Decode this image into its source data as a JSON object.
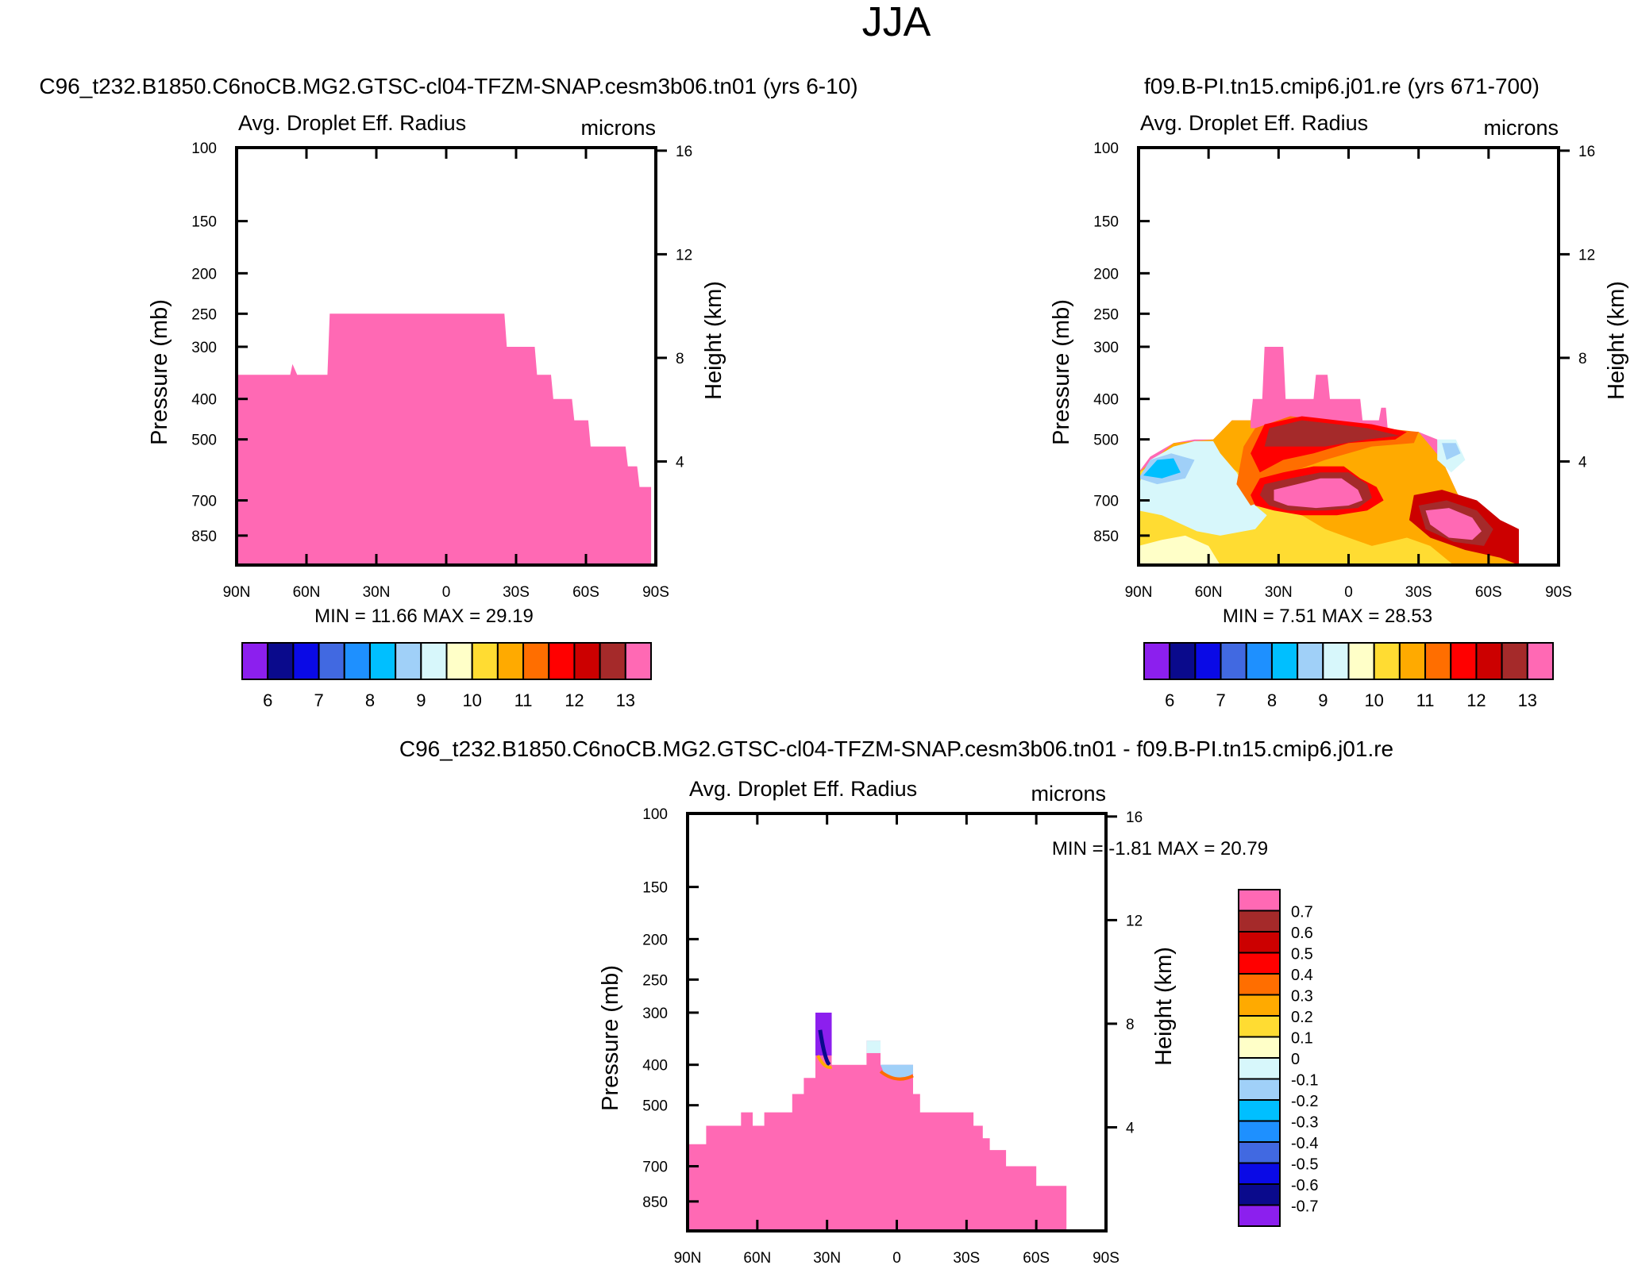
{
  "figure": {
    "title": "JJA"
  },
  "chart_data": [
    {
      "type": "heatmap",
      "title": "C96_t232.B1850.C6noCB.MG2.GTSC-cl04-TFZM-SNAP.cesm3b06.tn01 (yrs 6-10)",
      "variable": "Avg. Droplet Eff. Radius",
      "units": "microns",
      "ylabel": "Pressure (mb)",
      "y2label": "Height (km)",
      "x_ticks": [
        "90N",
        "60N",
        "30N",
        "0",
        "30S",
        "60S",
        "90S"
      ],
      "y_ticks": [
        100,
        150,
        200,
        250,
        300,
        400,
        500,
        700,
        850
      ],
      "y2_ticks": [
        16,
        12,
        8,
        4
      ],
      "xlim": [
        90,
        -90
      ],
      "ylim": [
        1000,
        100
      ],
      "stats": {
        "min_label": "MIN =",
        "min": "11.66",
        "max_label": "MAX =",
        "max": "29.19"
      },
      "field_top_profile": [
        {
          "lat": 90,
          "p": 350
        },
        {
          "lat": 67,
          "p": 350
        },
        {
          "lat": 66,
          "p": 330
        },
        {
          "lat": 64,
          "p": 350
        },
        {
          "lat": 51,
          "p": 350
        },
        {
          "lat": 50,
          "p": 250
        },
        {
          "lat": -25,
          "p": 250
        },
        {
          "lat": -26,
          "p": 300
        },
        {
          "lat": -38,
          "p": 300
        },
        {
          "lat": -39,
          "p": 350
        },
        {
          "lat": -45,
          "p": 350
        },
        {
          "lat": -46,
          "p": 400
        },
        {
          "lat": -54,
          "p": 400
        },
        {
          "lat": -55,
          "p": 450
        },
        {
          "lat": -61,
          "p": 450
        },
        {
          "lat": -62,
          "p": 520
        },
        {
          "lat": -77,
          "p": 520
        },
        {
          "lat": -78,
          "p": 580
        },
        {
          "lat": -82,
          "p": 580
        },
        {
          "lat": -83,
          "p": 650
        },
        {
          "lat": -88,
          "p": 650
        },
        {
          "lat": -88,
          "p": 1000
        }
      ],
      "colorbar": {
        "labels": [
          "6",
          "7",
          "8",
          "9",
          "10",
          "11",
          "12",
          "13"
        ],
        "colors": [
          "#8c1fee",
          "#0a0a8c",
          "#0a0ae6",
          "#4169e1",
          "#1e90ff",
          "#00bfff",
          "#a0d0f8",
          "#d7f7fb",
          "#ffffc8",
          "#ffdc32",
          "#ffaa00",
          "#ff6e00",
          "#ff0000",
          "#cc0000",
          "#a52a2a",
          "#ff69b4"
        ]
      }
    },
    {
      "type": "heatmap",
      "title": "f09.B-PI.tn15.cmip6.j01.re (yrs 671-700)",
      "variable": "Avg. Droplet Eff. Radius",
      "units": "microns",
      "ylabel": "Pressure (mb)",
      "y2label": "Height (km)",
      "x_ticks": [
        "90N",
        "60N",
        "30N",
        "0",
        "30S",
        "60S",
        "90S"
      ],
      "y_ticks": [
        100,
        150,
        200,
        250,
        300,
        400,
        500,
        700,
        850
      ],
      "y2_ticks": [
        16,
        12,
        8,
        4
      ],
      "xlim": [
        90,
        -90
      ],
      "ylim": [
        1000,
        100
      ],
      "stats": {
        "min_label": "MIN =",
        "min": "7.51",
        "max_label": "MAX =",
        "max": "28.53"
      },
      "field_top_profile": [
        {
          "lat": 90,
          "p": 1000
        },
        {
          "lat": 90,
          "p": 600
        },
        {
          "lat": 85,
          "p": 550
        },
        {
          "lat": 75,
          "p": 510
        },
        {
          "lat": 66,
          "p": 500
        },
        {
          "lat": 58,
          "p": 500
        },
        {
          "lat": 50,
          "p": 450
        },
        {
          "lat": 42,
          "p": 450
        },
        {
          "lat": 41,
          "p": 400
        },
        {
          "lat": 37,
          "p": 400
        },
        {
          "lat": 36,
          "p": 300
        },
        {
          "lat": 28,
          "p": 300
        },
        {
          "lat": 27,
          "p": 400
        },
        {
          "lat": 15,
          "p": 400
        },
        {
          "lat": 14,
          "p": 350
        },
        {
          "lat": 9,
          "p": 350
        },
        {
          "lat": 8,
          "p": 400
        },
        {
          "lat": -5,
          "p": 400
        },
        {
          "lat": -6,
          "p": 450
        },
        {
          "lat": -13,
          "p": 450
        },
        {
          "lat": -14,
          "p": 420
        },
        {
          "lat": -16,
          "p": 420
        },
        {
          "lat": -17,
          "p": 490
        },
        {
          "lat": -30,
          "p": 480
        },
        {
          "lat": -38,
          "p": 500
        },
        {
          "lat": -40,
          "p": 560
        },
        {
          "lat": -47,
          "p": 680
        },
        {
          "lat": -58,
          "p": 760
        },
        {
          "lat": -65,
          "p": 800
        },
        {
          "lat": -73,
          "p": 860
        },
        {
          "lat": -73,
          "p": 1000
        }
      ],
      "colorbar": {
        "labels": [
          "6",
          "7",
          "8",
          "9",
          "10",
          "11",
          "12",
          "13"
        ],
        "colors": [
          "#8c1fee",
          "#0a0a8c",
          "#0a0ae6",
          "#4169e1",
          "#1e90ff",
          "#00bfff",
          "#a0d0f8",
          "#d7f7fb",
          "#ffffc8",
          "#ffdc32",
          "#ffaa00",
          "#ff6e00",
          "#ff0000",
          "#cc0000",
          "#a52a2a",
          "#ff69b4"
        ]
      }
    },
    {
      "type": "heatmap",
      "title": "C96_t232.B1850.C6noCB.MG2.GTSC-cl04-TFZM-SNAP.cesm3b06.tn01 - f09.B-PI.tn15.cmip6.j01.re",
      "variable": "Avg. Droplet Eff. Radius",
      "units": "microns",
      "ylabel": "Pressure (mb)",
      "y2label": "Height (km)",
      "x_ticks": [
        "90N",
        "60N",
        "30N",
        "0",
        "30S",
        "60S",
        "90S"
      ],
      "y_ticks": [
        100,
        150,
        200,
        250,
        300,
        400,
        500,
        700,
        850
      ],
      "y2_ticks": [
        16,
        12,
        8,
        4
      ],
      "xlim": [
        90,
        -90
      ],
      "ylim": [
        1000,
        100
      ],
      "stats": {
        "min_label": "MIN =",
        "min": "-1.81",
        "max_label": "MAX =",
        "max": "20.79"
      },
      "field_top_profile": [
        {
          "lat": 90,
          "p": 1000
        },
        {
          "lat": 90,
          "p": 620
        },
        {
          "lat": 82,
          "p": 620
        },
        {
          "lat": 82,
          "p": 560
        },
        {
          "lat": 67,
          "p": 560
        },
        {
          "lat": 67,
          "p": 520
        },
        {
          "lat": 62,
          "p": 520
        },
        {
          "lat": 62,
          "p": 560
        },
        {
          "lat": 57,
          "p": 560
        },
        {
          "lat": 57,
          "p": 520
        },
        {
          "lat": 45,
          "p": 520
        },
        {
          "lat": 45,
          "p": 470
        },
        {
          "lat": 40,
          "p": 470
        },
        {
          "lat": 40,
          "p": 430
        },
        {
          "lat": 35,
          "p": 430
        },
        {
          "lat": 35,
          "p": 300
        },
        {
          "lat": 28,
          "p": 300
        },
        {
          "lat": 28,
          "p": 400
        },
        {
          "lat": 13,
          "p": 400
        },
        {
          "lat": 13,
          "p": 350
        },
        {
          "lat": 7,
          "p": 350
        },
        {
          "lat": 7,
          "p": 400
        },
        {
          "lat": -7,
          "p": 400
        },
        {
          "lat": -7,
          "p": 470
        },
        {
          "lat": -10,
          "p": 470
        },
        {
          "lat": -10,
          "p": 520
        },
        {
          "lat": -33,
          "p": 520
        },
        {
          "lat": -33,
          "p": 560
        },
        {
          "lat": -37,
          "p": 560
        },
        {
          "lat": -37,
          "p": 600
        },
        {
          "lat": -40,
          "p": 600
        },
        {
          "lat": -40,
          "p": 640
        },
        {
          "lat": -47,
          "p": 640
        },
        {
          "lat": -47,
          "p": 700
        },
        {
          "lat": -60,
          "p": 700
        },
        {
          "lat": -60,
          "p": 780
        },
        {
          "lat": -73,
          "p": 780
        },
        {
          "lat": -73,
          "p": 1000
        }
      ],
      "colorbar": {
        "labels": [
          "0.7",
          "0.6",
          "0.5",
          "0.4",
          "0.3",
          "0.2",
          "0.1",
          "0",
          "-0.1",
          "-0.2",
          "-0.3",
          "-0.4",
          "-0.5",
          "-0.6",
          "-0.7"
        ],
        "colors": [
          "#ff69b4",
          "#a52a2a",
          "#cc0000",
          "#ff0000",
          "#ff6e00",
          "#ffaa00",
          "#ffdc32",
          "#ffffc8",
          "#d7f7fb",
          "#a0d0f8",
          "#00bfff",
          "#1e90ff",
          "#4169e1",
          "#0a0ae6",
          "#0a0a8c",
          "#8c1fee"
        ]
      }
    }
  ]
}
